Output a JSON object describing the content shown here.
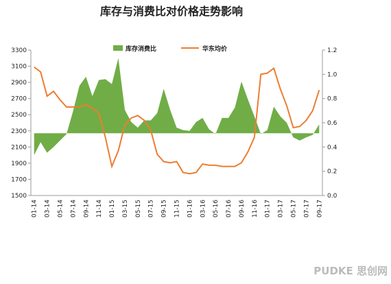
{
  "chart_data": {
    "type": "area-line",
    "title": "库存与消费比对价格走势影响",
    "categories": [
      "01-14",
      null,
      "03-14",
      null,
      "05-14",
      null,
      "07-14",
      null,
      "09-14",
      null,
      "11-14",
      null,
      "01-15",
      null,
      "03-15",
      null,
      "05-15",
      null,
      "07-15",
      null,
      "09-15",
      null,
      "11-15",
      null,
      "01-16",
      null,
      "03-16",
      null,
      "05-16",
      null,
      "07-16",
      null,
      "09-16",
      null,
      "11-16",
      null,
      "01-17",
      null,
      "03-17",
      null,
      "05-17",
      null,
      "07-17",
      null,
      "09-17"
    ],
    "series": [
      {
        "name": "库存消费比",
        "type": "area",
        "color": "#70ad47",
        "axis": "y",
        "baseline": 2270,
        "values": [
          2000,
          2160,
          2030,
          2100,
          2180,
          2260,
          2540,
          2860,
          2970,
          2730,
          2930,
          2940,
          2880,
          3200,
          2560,
          2410,
          2340,
          2430,
          2430,
          2520,
          2820,
          2560,
          2340,
          2310,
          2300,
          2410,
          2460,
          2320,
          2260,
          2460,
          2460,
          2590,
          2910,
          2690,
          2480,
          2260,
          2310,
          2600,
          2480,
          2400,
          2220,
          2180,
          2220,
          2250,
          2380
        ]
      },
      {
        "name": "华东均价",
        "type": "line",
        "color": "#ed7d31",
        "axis": "y2",
        "values": [
          1.06,
          1.02,
          0.82,
          0.86,
          0.79,
          0.73,
          0.73,
          0.73,
          0.75,
          0.72,
          0.68,
          0.48,
          0.24,
          0.37,
          0.58,
          0.64,
          0.66,
          0.62,
          0.54,
          0.34,
          0.28,
          0.27,
          0.28,
          0.19,
          0.18,
          0.19,
          0.26,
          0.25,
          0.25,
          0.24,
          0.24,
          0.24,
          0.27,
          0.36,
          0.48,
          1.0,
          1.01,
          1.05,
          0.88,
          0.74,
          0.56,
          0.57,
          0.62,
          0.7,
          0.87
        ]
      }
    ],
    "ylim": [
      1500,
      3300
    ],
    "yticks": [
      1500,
      1700,
      1900,
      2100,
      2300,
      2500,
      2700,
      2900,
      3100,
      3300
    ],
    "y2lim": [
      0,
      1.2
    ],
    "y2ticks": [
      {
        "value": 0,
        "label": "0.0"
      },
      {
        "value": 0.2,
        "label": "0.2"
      },
      {
        "value": 0.4,
        "label": "0.4"
      },
      {
        "value": 0.6,
        "label": "0.6"
      },
      {
        "value": 0.8,
        "label": "0.8"
      },
      {
        "value": 1,
        "label": "1.0"
      },
      {
        "value": 1.2,
        "label": "1.2"
      }
    ],
    "legend": "top",
    "watermark": "PUDKE 思创网"
  }
}
